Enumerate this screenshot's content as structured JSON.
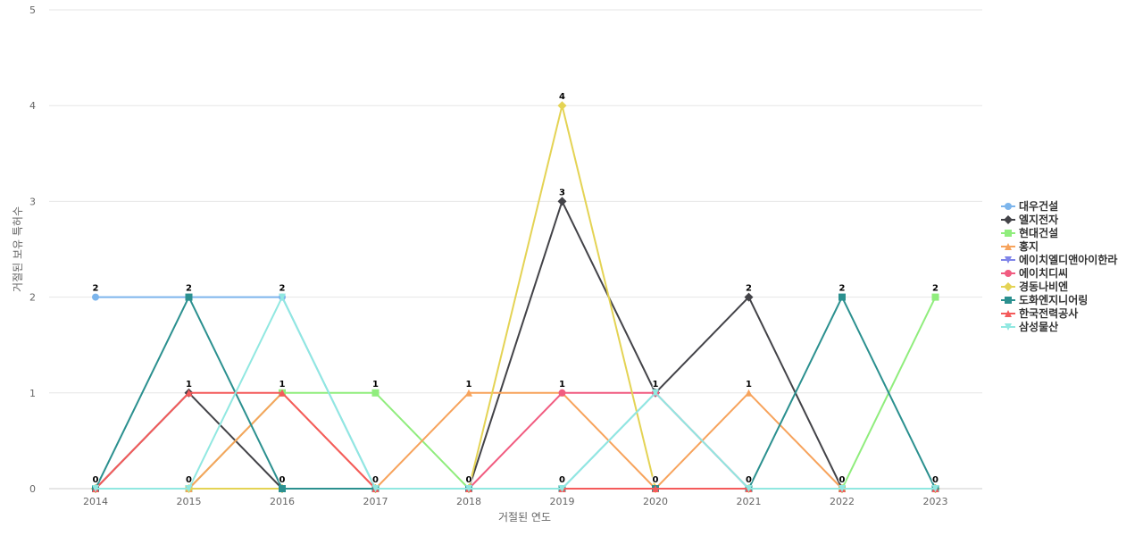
{
  "chart_data": {
    "type": "line",
    "xlabel": "거절된 연도",
    "ylabel": "거절된 보유 특허수",
    "categories": [
      "2014",
      "2015",
      "2016",
      "2017",
      "2018",
      "2019",
      "2020",
      "2021",
      "2022",
      "2023"
    ],
    "ylim": [
      0,
      5
    ],
    "yticks": [
      0,
      1,
      2,
      3,
      4,
      5
    ],
    "grid": true,
    "legend_position": "right",
    "series": [
      {
        "name": "대우건설",
        "color": "#7cb5ec",
        "marker": "circle",
        "values": [
          2,
          2,
          2,
          0,
          0,
          0,
          1,
          0,
          0,
          0
        ]
      },
      {
        "name": "엘지전자",
        "color": "#434348",
        "marker": "diamond",
        "values": [
          0,
          1,
          0,
          0,
          0,
          3,
          1,
          2,
          0,
          0
        ]
      },
      {
        "name": "현대건설",
        "color": "#90ed7d",
        "marker": "square",
        "values": [
          0,
          0,
          1,
          1,
          0,
          0,
          0,
          0,
          0,
          2
        ]
      },
      {
        "name": "홍지",
        "color": "#f7a35c",
        "marker": "triangle",
        "values": [
          0,
          0,
          1,
          0,
          1,
          1,
          0,
          1,
          0,
          0
        ]
      },
      {
        "name": "에이치엘디앤아이한라",
        "color": "#8085e9",
        "marker": "triangle-down",
        "values": [
          0,
          0,
          0,
          0,
          0,
          0,
          0,
          0,
          0,
          0
        ]
      },
      {
        "name": "에이치디씨",
        "color": "#f15c80",
        "marker": "circle",
        "values": [
          0,
          0,
          0,
          0,
          0,
          1,
          1,
          0,
          0,
          0
        ]
      },
      {
        "name": "경동나비엔",
        "color": "#e4d354",
        "marker": "diamond",
        "values": [
          0,
          0,
          0,
          0,
          0,
          4,
          0,
          0,
          0,
          0
        ]
      },
      {
        "name": "도화엔지니어링",
        "color": "#2b908f",
        "marker": "square",
        "values": [
          0,
          2,
          0,
          0,
          0,
          0,
          0,
          0,
          2,
          0
        ]
      },
      {
        "name": "한국전력공사",
        "color": "#f45b5b",
        "marker": "triangle",
        "values": [
          0,
          1,
          1,
          0,
          0,
          0,
          0,
          0,
          0,
          0
        ]
      },
      {
        "name": "삼성물산",
        "color": "#91e8e1",
        "marker": "triangle-down",
        "values": [
          0,
          0,
          2,
          0,
          0,
          0,
          1,
          0,
          0,
          0
        ]
      }
    ],
    "data_labels": [
      {
        "x": "2014",
        "value": 2,
        "series": "대우건설"
      },
      {
        "x": "2014",
        "value": 0,
        "series": "엘지전자"
      },
      {
        "x": "2015",
        "value": 2,
        "series": "도화엔지니어링"
      },
      {
        "x": "2015",
        "value": 1,
        "series": "엘지전자"
      },
      {
        "x": "2015",
        "value": 0,
        "series": "현대건설"
      },
      {
        "x": "2016",
        "value": 2,
        "series": "삼성물산"
      },
      {
        "x": "2016",
        "value": 1,
        "series": "홍지"
      },
      {
        "x": "2016",
        "value": 0,
        "series": "엘지전자"
      },
      {
        "x": "2017",
        "value": 1,
        "series": "현대건설"
      },
      {
        "x": "2017",
        "value": 0,
        "series": "대우건설"
      },
      {
        "x": "2018",
        "value": 1,
        "series": "홍지"
      },
      {
        "x": "2018",
        "value": 0,
        "series": "대우건설"
      },
      {
        "x": "2019",
        "value": 4,
        "series": "경동나비엔"
      },
      {
        "x": "2019",
        "value": 3,
        "series": "엘지전자"
      },
      {
        "x": "2019",
        "value": 1,
        "series": "에이치디씨"
      },
      {
        "x": "2019",
        "value": 0,
        "series": "대우건설"
      },
      {
        "x": "2020",
        "value": 1,
        "series": "대우건설"
      },
      {
        "x": "2020",
        "value": 0,
        "series": "현대건설"
      },
      {
        "x": "2021",
        "value": 2,
        "series": "엘지전자"
      },
      {
        "x": "2021",
        "value": 1,
        "series": "홍지"
      },
      {
        "x": "2021",
        "value": 0,
        "series": "대우건설"
      },
      {
        "x": "2022",
        "value": 2,
        "series": "도화엔지니어링"
      },
      {
        "x": "2022",
        "value": 0,
        "series": "대우건설"
      },
      {
        "x": "2023",
        "value": 2,
        "series": "현대건설"
      },
      {
        "x": "2023",
        "value": 0,
        "series": "대우건설"
      }
    ]
  }
}
